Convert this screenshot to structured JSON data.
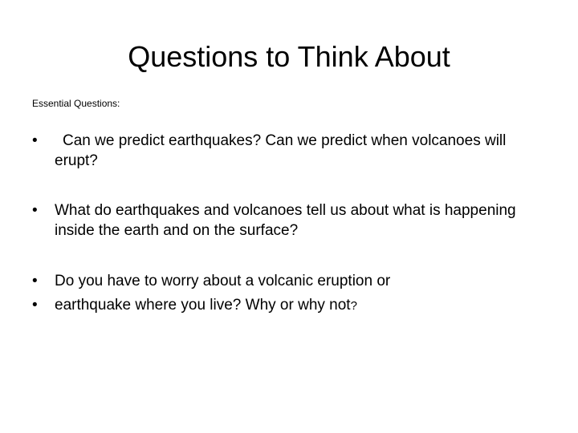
{
  "slide": {
    "title": "Questions to Think About",
    "subtitle": "Essential Questions:",
    "question1": "Can we predict earthquakes? Can we predict when volcanoes will erupt?",
    "question2": "What do earthquakes and volcanoes tell us about what is happening inside the earth and on the surface?",
    "question3_line1": "Do you have to worry about a volcanic eruption or",
    "question3_line2": "earthquake where you live? Why or why not",
    "question3_qmark": "?"
  },
  "style": {
    "background_color": "#ffffff",
    "text_color": "#000000",
    "title_fontsize": 36,
    "subtitle_fontsize": 12,
    "body_fontsize": 19,
    "small_q_fontsize": 15,
    "font_family": "Arial"
  }
}
